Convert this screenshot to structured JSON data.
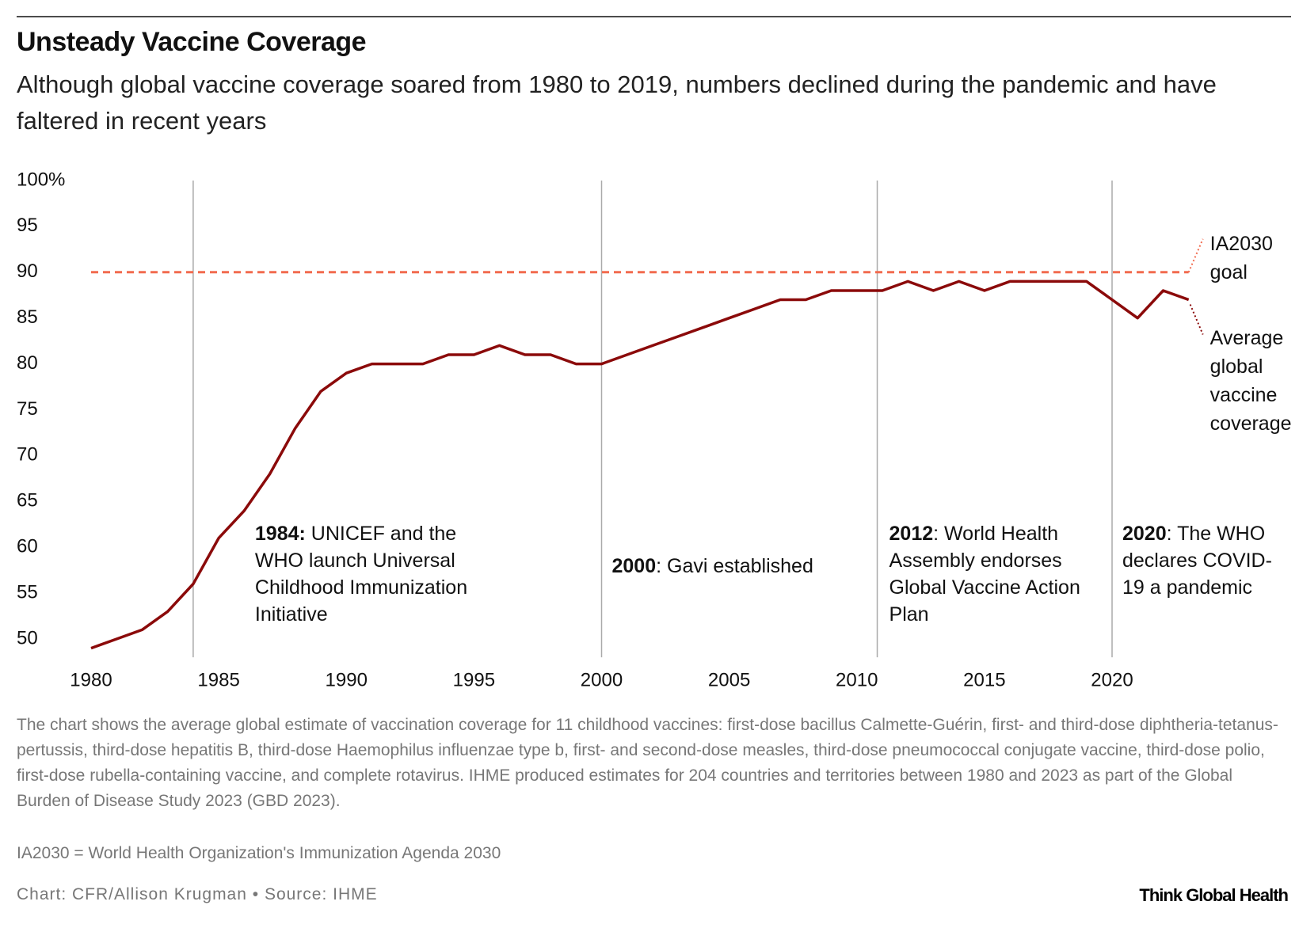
{
  "chart_data": {
    "type": "line",
    "title": "Unsteady Vaccine Coverage",
    "subtitle": "Although global vaccine coverage soared from 1980 to 2019, numbers declined during the pandemic and have faltered in recent years",
    "x": [
      1980,
      1981,
      1982,
      1983,
      1984,
      1985,
      1986,
      1987,
      1988,
      1989,
      1990,
      1991,
      1992,
      1993,
      1994,
      1995,
      1996,
      1997,
      1998,
      1999,
      2000,
      2001,
      2002,
      2003,
      2004,
      2005,
      2006,
      2007,
      2008,
      2009,
      2010,
      2011,
      2012,
      2013,
      2014,
      2015,
      2016,
      2017,
      2018,
      2019,
      2020,
      2021,
      2022,
      2023
    ],
    "series": [
      {
        "name": "Average global vaccine coverage",
        "color": "#8b0a0a",
        "values": [
          49,
          50,
          51,
          53,
          56,
          61,
          64,
          68,
          73,
          77,
          79,
          80,
          80,
          80,
          81,
          81,
          82,
          81,
          81,
          80,
          80,
          81,
          82,
          83,
          84,
          85,
          86,
          87,
          87,
          88,
          88,
          88,
          89,
          88,
          89,
          88,
          89,
          89,
          89,
          89,
          87,
          85,
          88,
          87
        ]
      }
    ],
    "goal": {
      "label": "IA2030 goal",
      "value": 90,
      "color": "#f26b4f"
    },
    "xlim": [
      1980,
      2023
    ],
    "ylim": [
      48,
      100
    ],
    "xticks": [
      1980,
      1985,
      1990,
      1995,
      2000,
      2005,
      2010,
      2015,
      2020
    ],
    "yticks": [
      50,
      55,
      60,
      65,
      70,
      75,
      80,
      85,
      90,
      95,
      {
        "value": 100,
        "label": "100%"
      }
    ],
    "annotations": [
      {
        "x": 1984,
        "bold": "1984:",
        "text": " UNICEF and the WHO launch Universal Childhood Immunization Initiative"
      },
      {
        "x": 2000,
        "bold": "2000",
        "text": ": Gavi established"
      },
      {
        "x": 2010.8,
        "bold": "2012",
        "text": ": World Health Assembly endorses Global Vaccine Action Plan"
      },
      {
        "x": 2020,
        "bold": "2020",
        "text": ": The WHO declares COVID-19 a pandemic"
      }
    ],
    "note": "The chart shows the average global estimate of vaccination coverage for 11 childhood vaccines: first-dose bacillus Calmette-Guérin, first- and third-dose diphtheria-tetanus-pertussis, third-dose hepatitis B, third-dose Haemophilus influenzae type b, first- and second-dose measles, third-dose pneumococcal conjugate vaccine, third-dose polio, first-dose rubella-containing vaccine, and complete rotavirus. IHME produced estimates for 204 countries and territories between 1980 and 2023 as part of the Global Burden of Disease Study 2023 (GBD 2023).",
    "abbreviation": "IA2030 = World Health Organization's Immunization Agenda 2030",
    "credit": "Chart: CFR/Allison Krugman • Source: IHME",
    "brand": "Think Global Health"
  }
}
